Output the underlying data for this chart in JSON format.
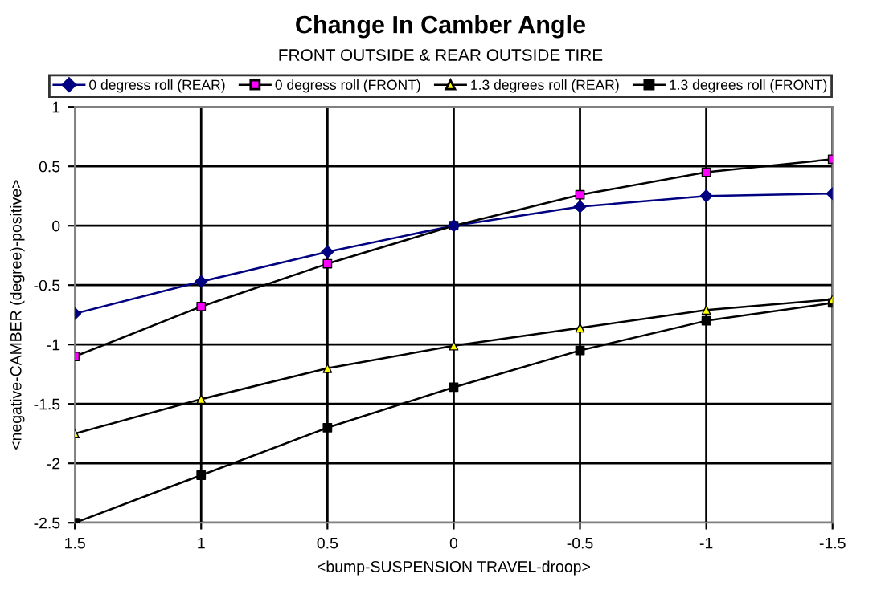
{
  "chart_data": {
    "type": "line",
    "title": "Change In Camber Angle",
    "subtitle": "FRONT OUTSIDE & REAR OUTSIDE TIRE",
    "xlabel": "<bump-SUSPENSION TRAVEL-droop>",
    "ylabel": "<negative-CAMBER (degree)-positive>",
    "x": [
      1.5,
      1,
      0.5,
      0,
      -0.5,
      -1,
      -1.5
    ],
    "series": [
      {
        "name": "0 degress roll (REAR)",
        "color": "#000080",
        "marker": "diamond",
        "colors": [
          "#000080",
          "#000080",
          "#000080",
          "#000080",
          "#000080",
          "#000080",
          "#000080"
        ],
        "values": [
          -0.74,
          -0.47,
          -0.22,
          0,
          0.16,
          0.25,
          0.27
        ]
      },
      {
        "name": "0 degress roll (FRONT)",
        "color": "#000000",
        "marker": "square",
        "colors": [
          "#ff00ff",
          "#ff00ff",
          "#ff00ff",
          "#ff00ff",
          "#ff00ff",
          "#ff00ff",
          "#ff00ff"
        ],
        "values": [
          -1.1,
          -0.68,
          -0.32,
          0,
          0.26,
          0.45,
          0.56
        ]
      },
      {
        "name": "1.3 degrees roll (REAR)",
        "color": "#000000",
        "marker": "triangle",
        "colors": [
          "#ffff00",
          "#ffff00",
          "#ffff00",
          "#ffff00",
          "#ffff00",
          "#ffff00",
          "#ffff00"
        ],
        "values": [
          -1.75,
          -1.46,
          -1.2,
          -1.01,
          -0.86,
          -0.71,
          -0.62
        ]
      },
      {
        "name": "1.3 degrees roll (FRONT)",
        "color": "#000000",
        "marker": "square",
        "colors": [
          "#000000",
          "#000000",
          "#000000",
          "#000000",
          "#000000",
          "#000000",
          "#000000"
        ],
        "values": [
          -2.5,
          -2.1,
          -1.7,
          -1.36,
          -1.05,
          -0.8,
          -0.65
        ]
      }
    ],
    "xlim": [
      1.5,
      -1.5
    ],
    "xticks": [
      1.5,
      1,
      0.5,
      0,
      -0.5,
      -1,
      -1.5
    ],
    "ylim": [
      -2.5,
      1
    ],
    "yticks": [
      -2.5,
      -2,
      -1.5,
      -1,
      -0.5,
      0,
      0.5,
      1
    ],
    "grid": true,
    "legend": "top"
  }
}
